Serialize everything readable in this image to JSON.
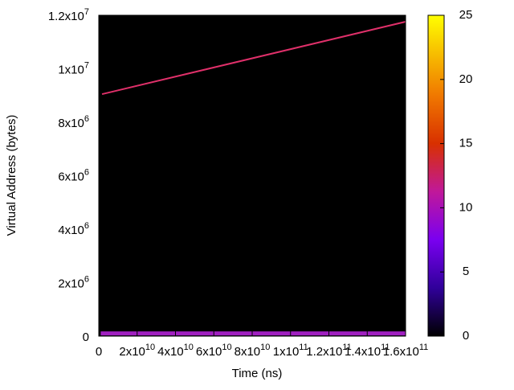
{
  "chart_data": {
    "type": "line",
    "x_label": "Time (ns)",
    "y_label": "Virtual Address (bytes)",
    "xlim": [
      0,
      160000000000
    ],
    "xticks": [
      0,
      {
        "value": 20000000000,
        "label": "2x10^10"
      },
      {
        "value": 40000000000,
        "label": "4x10^10"
      },
      {
        "value": 60000000000,
        "label": "6x10^10"
      },
      {
        "value": 80000000000,
        "label": "8x10^10"
      },
      {
        "value": 100000000000,
        "label": "1x10^11"
      },
      {
        "value": 120000000000,
        "label": "1.2x10^11"
      },
      {
        "value": 140000000000,
        "label": "1.4x10^11"
      },
      {
        "value": 160000000000,
        "label": "1.6x10^11"
      }
    ],
    "ylim": [
      0,
      12000000
    ],
    "yticks": [
      0,
      {
        "value": 2000000,
        "label": "2x10^6"
      },
      {
        "value": 4000000,
        "label": "4x10^6"
      },
      {
        "value": 6000000,
        "label": "6x10^6"
      },
      {
        "value": 8000000,
        "label": "8x10^6"
      },
      {
        "value": 10000000,
        "label": "1x10^7"
      },
      {
        "value": 12000000,
        "label": "1.2x10^7"
      }
    ],
    "background": "#000000",
    "series": [
      {
        "x": [
          1700000000,
          160000000000
        ],
        "values": [
          9050000,
          11760000
        ],
        "color": "#e0306a",
        "width": 2
      },
      {
        "x": [
          1000000000,
          160000000000
        ],
        "values": [
          100000,
          100000
        ],
        "color": "#a020c0",
        "width": 5
      }
    ],
    "colorbar": {
      "lim": [
        0,
        25
      ],
      "ticks": [
        0,
        5,
        10,
        15,
        20,
        25
      ]
    }
  }
}
